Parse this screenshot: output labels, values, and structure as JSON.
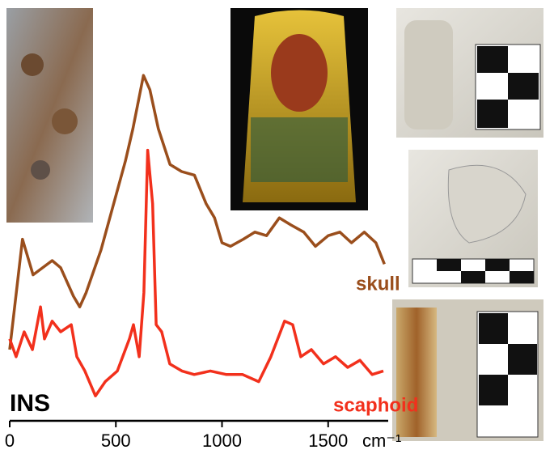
{
  "chart_data": {
    "type": "line",
    "annotations": [
      "INS"
    ],
    "x_label": "cm⁻¹",
    "xlim": [
      0,
      1780
    ],
    "xticks": [
      0,
      500,
      1000,
      1500
    ],
    "ylim": [
      0,
      1
    ],
    "series": [
      {
        "name": "skull",
        "color": "#9a4e1c",
        "x": [
          0,
          60,
          110,
          200,
          240,
          300,
          330,
          360,
          430,
          490,
          545,
          580,
          630,
          660,
          700,
          755,
          810,
          870,
          925,
          965,
          1000,
          1040,
          1100,
          1155,
          1210,
          1270,
          1325,
          1385,
          1440,
          1500,
          1555,
          1610,
          1670,
          1725,
          1765
        ],
        "values": [
          0.2,
          0.51,
          0.41,
          0.45,
          0.43,
          0.35,
          0.32,
          0.36,
          0.48,
          0.61,
          0.73,
          0.82,
          0.97,
          0.93,
          0.82,
          0.72,
          0.7,
          0.69,
          0.61,
          0.57,
          0.5,
          0.49,
          0.51,
          0.53,
          0.52,
          0.57,
          0.55,
          0.53,
          0.49,
          0.52,
          0.53,
          0.5,
          0.53,
          0.5,
          0.44
        ]
      },
      {
        "name": "scaphoid",
        "color": "#f2301c",
        "x": [
          0,
          30,
          68,
          107,
          145,
          164,
          200,
          240,
          290,
          316,
          354,
          404,
          450,
          507,
          564,
          583,
          610,
          632,
          650,
          673,
          690,
          716,
          754,
          811,
          869,
          945,
          1021,
          1097,
          1173,
          1230,
          1295,
          1333,
          1371,
          1421,
          1478,
          1535,
          1592,
          1650,
          1707,
          1760
        ],
        "values": [
          0.23,
          0.18,
          0.25,
          0.2,
          0.32,
          0.23,
          0.28,
          0.25,
          0.27,
          0.18,
          0.14,
          0.07,
          0.11,
          0.14,
          0.23,
          0.27,
          0.18,
          0.36,
          0.76,
          0.61,
          0.27,
          0.25,
          0.16,
          0.14,
          0.13,
          0.14,
          0.13,
          0.13,
          0.11,
          0.18,
          0.28,
          0.27,
          0.18,
          0.2,
          0.16,
          0.18,
          0.15,
          0.17,
          0.13,
          0.14
        ]
      }
    ]
  }
}
